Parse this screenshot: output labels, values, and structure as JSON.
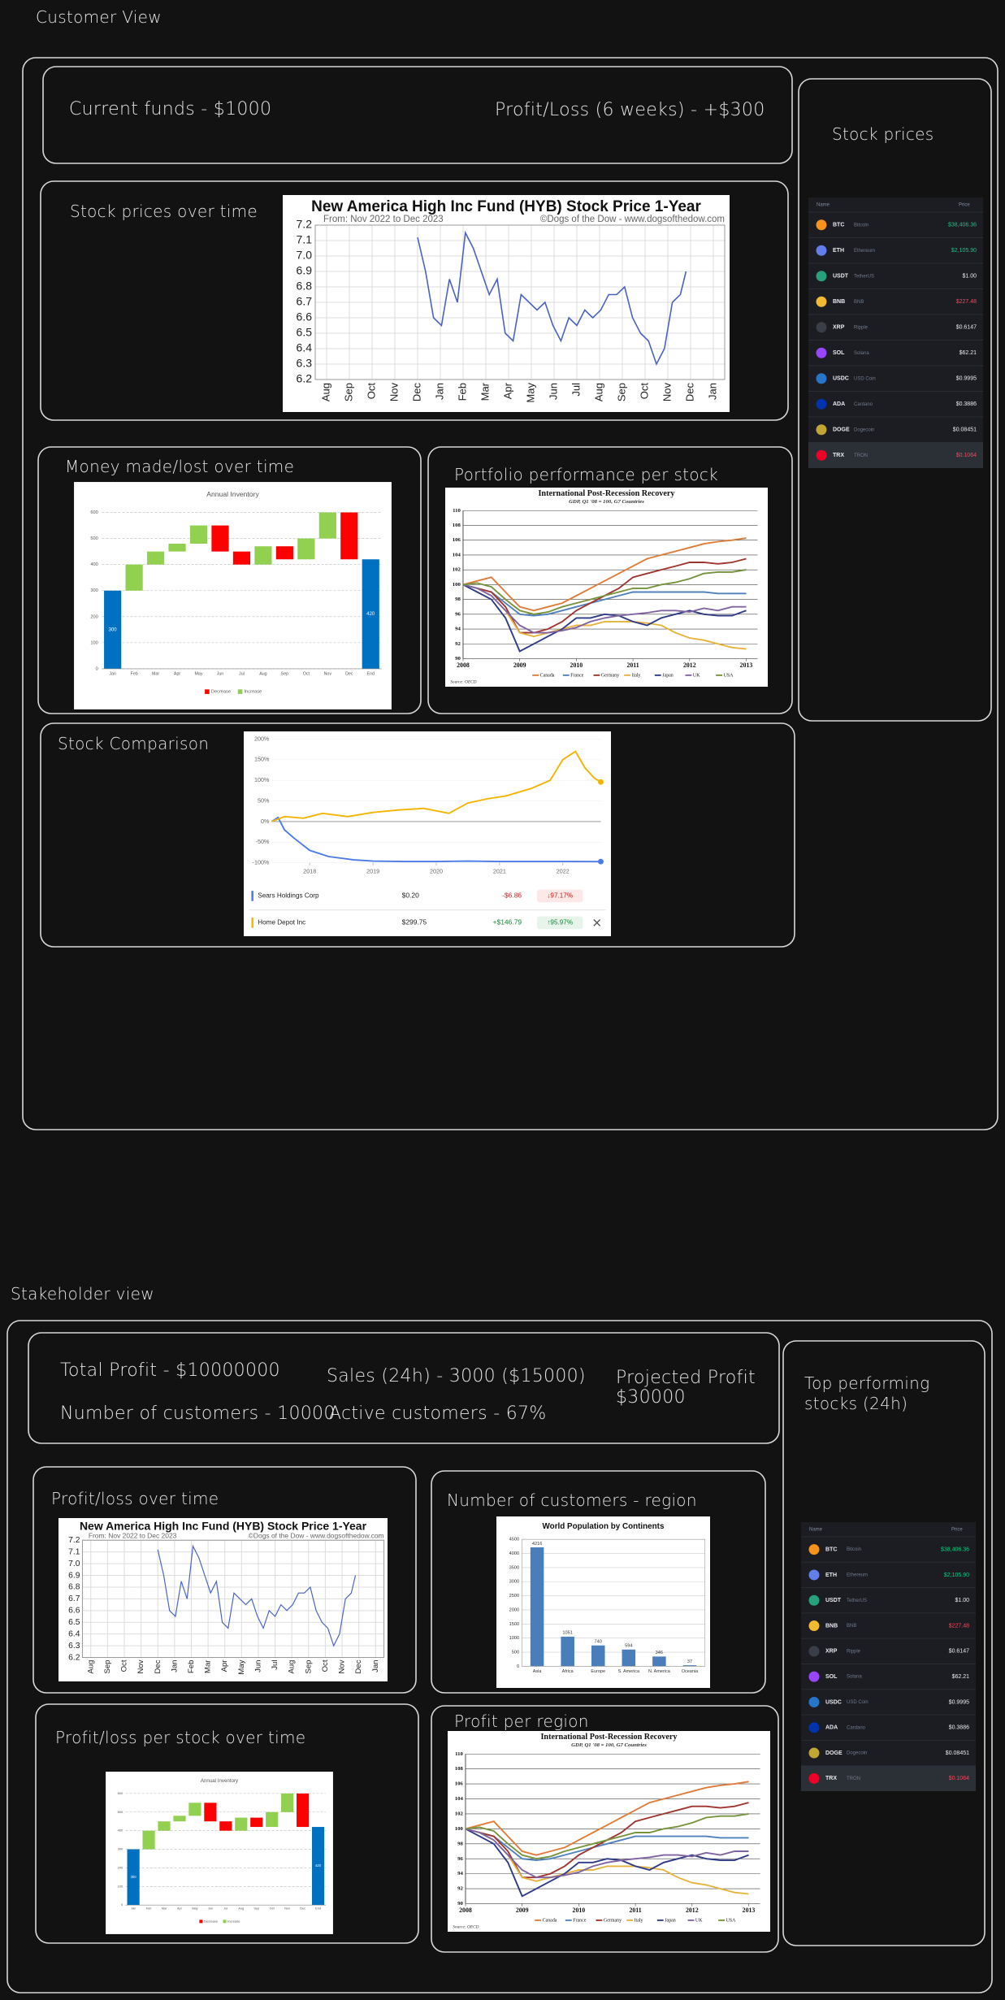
{
  "customer_view": {
    "title": "Customer View",
    "funds": "Current funds - $1000",
    "profit_loss": "Profit/Loss (6 weeks) - +$300",
    "stock_prices_title": "Stock prices",
    "panels": [
      "Stock prices over time",
      "Money made/lost over time",
      "Portfolio performance per stock",
      "Stock Comparison"
    ]
  },
  "stakeholder_view": {
    "title": "Stakeholder view",
    "metrics": [
      "Total Profit - $10000000",
      "Number of customers - 10000",
      "Sales (24h) - 3000 ($15000)",
      "Active customers - 67%",
      "Projected Profit",
      "$30000"
    ],
    "top_title": "Top performing stocks (24h)",
    "panels": [
      "Profit/loss over time",
      "Number of customers - region",
      "Profit/loss per stock over time",
      "Profit per region"
    ]
  },
  "crypto_table": {
    "headers": [
      "Name",
      "Price"
    ],
    "highlight_row": 9,
    "rows": [
      {
        "symbol": "BTC",
        "name": "Bitcoin",
        "price": "$38,406.36",
        "color": "#f7931a",
        "price_color": "#0ecb81"
      },
      {
        "symbol": "ETH",
        "name": "Ethereum",
        "price": "$2,105.90",
        "color": "#627eea",
        "price_color": "#0ecb81"
      },
      {
        "symbol": "USDT",
        "name": "TetherUS",
        "price": "$1.00",
        "color": "#26a17b",
        "price_color": "#eaecef"
      },
      {
        "symbol": "BNB",
        "name": "BNB",
        "price": "$227.48",
        "color": "#f3ba2f",
        "price_color": "#f6465d"
      },
      {
        "symbol": "XRP",
        "name": "Ripple",
        "price": "$0.6147",
        "color": "#3a3f47",
        "price_color": "#eaecef"
      },
      {
        "symbol": "SOL",
        "name": "Solana",
        "price": "$62.21",
        "color": "#9945ff",
        "price_color": "#eaecef"
      },
      {
        "symbol": "USDC",
        "name": "USD Coin",
        "price": "$0.9995",
        "color": "#2775ca",
        "price_color": "#eaecef"
      },
      {
        "symbol": "ADA",
        "name": "Cardano",
        "price": "$0.3886",
        "color": "#0033ad",
        "price_color": "#eaecef"
      },
      {
        "symbol": "DOGE",
        "name": "Dogecoin",
        "price": "$0.08451",
        "color": "#c2a633",
        "price_color": "#eaecef"
      },
      {
        "symbol": "TRX",
        "name": "TRON",
        "price": "$0.1064",
        "color": "#ef0027",
        "price_color": "#f6465d"
      }
    ]
  },
  "chart_data": [
    {
      "type": "line",
      "title": "New America High Inc Fund (HYB) Stock Price 1-Year",
      "subtitle": "From: Nov 2022 to Dec 2023",
      "credit": "©Dogs of the Dow - www.dogsofthedow.com",
      "color": "#4a63c0",
      "grid": true,
      "xlim": [
        0,
        18
      ],
      "xticks": [
        {
          "value": 0.5,
          "label": "Aug"
        },
        {
          "value": 1.5,
          "label": "Sep"
        },
        {
          "value": 2.5,
          "label": "Oct"
        },
        {
          "value": 3.5,
          "label": "Nov"
        },
        {
          "value": 4.5,
          "label": "Dec"
        },
        {
          "value": 5.5,
          "label": "Jan"
        },
        {
          "value": 6.5,
          "label": "Feb"
        },
        {
          "value": 7.5,
          "label": "Mar"
        },
        {
          "value": 8.5,
          "label": "Apr"
        },
        {
          "value": 9.5,
          "label": "May"
        },
        {
          "value": 10.5,
          "label": "Jun"
        },
        {
          "value": 11.5,
          "label": "Jul"
        },
        {
          "value": 12.5,
          "label": "Aug"
        },
        {
          "value": 13.5,
          "label": "Sep"
        },
        {
          "value": 14.5,
          "label": "Oct"
        },
        {
          "value": 15.5,
          "label": "Nov"
        },
        {
          "value": 16.5,
          "label": "Dec"
        },
        {
          "value": 17.5,
          "label": "Jan"
        }
      ],
      "ylim": [
        6.2,
        7.2
      ],
      "yticks": [
        6.2,
        6.3,
        6.4,
        6.5,
        6.6,
        6.7,
        6.8,
        6.9,
        {
          "value": 7,
          "label": "7.0"
        },
        7.1,
        7.2
      ],
      "x": [
        4.5,
        4.85,
        5.2,
        5.55,
        5.9,
        6.25,
        6.6,
        6.95,
        7.3,
        7.65,
        8.0,
        8.35,
        8.7,
        9.05,
        9.4,
        9.75,
        10.1,
        10.45,
        10.8,
        11.15,
        11.5,
        11.85,
        12.2,
        12.55,
        12.9,
        13.25,
        13.6,
        13.95,
        14.3,
        14.65,
        15.0,
        15.35,
        15.7,
        16.05,
        16.3
      ],
      "values": [
        7.12,
        6.9,
        6.6,
        6.55,
        6.85,
        6.7,
        7.15,
        7.05,
        6.9,
        6.75,
        6.85,
        6.5,
        6.45,
        6.75,
        6.7,
        6.65,
        6.7,
        6.55,
        6.45,
        6.6,
        6.55,
        6.65,
        6.6,
        6.65,
        6.75,
        6.75,
        6.8,
        6.6,
        6.5,
        6.45,
        6.3,
        6.4,
        6.7,
        6.75,
        6.9
      ]
    },
    {
      "type": "waterfall",
      "title": "Annual Inventory",
      "categories": [
        "Jan",
        "Feb",
        "Mar",
        "Apr",
        "May",
        "Jun",
        "Jul",
        "Aug",
        "Sep",
        "Oct",
        "Nov",
        "Dec",
        "End"
      ],
      "values": [
        300,
        100,
        50,
        30,
        70,
        -100,
        -50,
        70,
        -50,
        80,
        100,
        -180,
        420
      ],
      "is_total": [
        true,
        false,
        false,
        false,
        false,
        false,
        false,
        false,
        false,
        false,
        false,
        false,
        true
      ],
      "legend": [
        "Decrease",
        "Increase"
      ],
      "decrease_color": "#ff0000",
      "increase_color": "#92d050",
      "total_color": "#0070c0",
      "ylim": [
        0,
        600
      ],
      "yticks": [
        0,
        100,
        200,
        300,
        400,
        500,
        600
      ],
      "grid": true
    },
    {
      "type": "multiline",
      "title": "International Post-Recession Recovery",
      "subtitle": "GDP, Q1 '08 = 100, G7 Countries",
      "source": "Source: OECD",
      "xlim": [
        2008,
        2013.2
      ],
      "xticks": [
        2008,
        2009,
        2010,
        2011,
        2012,
        2013
      ],
      "ylim": [
        90,
        110
      ],
      "yticks": [
        90,
        92,
        94,
        96,
        98,
        100,
        102,
        104,
        106,
        108,
        110
      ],
      "grid": true,
      "x": [
        2008,
        2008.25,
        2008.5,
        2008.75,
        2009,
        2009.25,
        2009.5,
        2009.75,
        2010,
        2010.25,
        2010.5,
        2010.75,
        2011,
        2011.25,
        2011.5,
        2011.75,
        2012,
        2012.25,
        2012.5,
        2012.75,
        2013
      ],
      "series": [
        {
          "name": "Canada",
          "color": "#e07b39",
          "values": [
            100,
            100.5,
            101,
            99,
            97,
            96.5,
            97,
            97.5,
            98.5,
            99.5,
            100.5,
            101.5,
            102.5,
            103.5,
            104,
            104.5,
            105,
            105.5,
            105.8,
            106,
            106.3
          ]
        },
        {
          "name": "France",
          "color": "#4f81bd",
          "values": [
            100,
            99.5,
            99,
            97.5,
            96,
            95.8,
            96,
            96.5,
            97,
            97.5,
            98,
            98.5,
            99,
            99,
            99,
            99,
            99,
            99,
            98.8,
            98.8,
            98.8
          ]
        },
        {
          "name": "Germany",
          "color": "#a0352f",
          "values": [
            100,
            99.5,
            99,
            97,
            93.5,
            93.5,
            94,
            95,
            96.5,
            97.5,
            98.5,
            99.5,
            101,
            101.5,
            102,
            102.5,
            103,
            103,
            102.8,
            103,
            103.5
          ]
        },
        {
          "name": "Italy",
          "color": "#e6b33c",
          "values": [
            100,
            99.5,
            98.5,
            96.5,
            93.5,
            93,
            93.5,
            94,
            94.5,
            94.5,
            95,
            95,
            95,
            94.8,
            94.5,
            93.5,
            92.8,
            92.5,
            92,
            91.5,
            91.3
          ]
        },
        {
          "name": "Japan",
          "color": "#2e3a87",
          "values": [
            100,
            99,
            98,
            95.5,
            91,
            92,
            93,
            94,
            95.5,
            95.5,
            96,
            95.8,
            95,
            94.5,
            95.5,
            96,
            96.5,
            96,
            95.8,
            95.8,
            96.5
          ]
        },
        {
          "name": "UK",
          "color": "#8064a2",
          "values": [
            100,
            99.5,
            98.5,
            96.5,
            94.5,
            93.5,
            93.5,
            93.8,
            94.2,
            95,
            95.5,
            95.8,
            96,
            96.2,
            96.5,
            96.5,
            96.3,
            96.8,
            96.5,
            97,
            97
          ]
        },
        {
          "name": "USA",
          "color": "#77933c",
          "values": [
            100,
            100.2,
            99.7,
            98,
            96.5,
            96,
            96.3,
            97,
            97.5,
            98,
            98.5,
            99,
            99.5,
            99.5,
            100,
            100.3,
            100.8,
            101.5,
            101.7,
            101.7,
            102
          ]
        }
      ]
    },
    {
      "type": "comparison",
      "xlim": [
        2017.4,
        2022.6
      ],
      "xticks": [
        2018,
        2019,
        2020,
        2021,
        2022
      ],
      "ylim": [
        -100,
        200
      ],
      "yticks": [
        {
          "value": -100,
          "label": "-100%"
        },
        {
          "value": -50,
          "label": "-50%"
        },
        {
          "value": 0,
          "label": "0%"
        },
        {
          "value": 50,
          "label": "50%"
        },
        {
          "value": 100,
          "label": "100%"
        },
        {
          "value": 150,
          "label": "150%"
        },
        {
          "value": 200,
          "label": "200%"
        }
      ],
      "series": [
        {
          "name": "Sears Holdings Corp",
          "color": "#4a7be8",
          "price": "$0.20",
          "change": "-$6.86",
          "change_pct": "↓97.17%",
          "x": [
            2017.4,
            2017.5,
            2017.6,
            2017.75,
            2018,
            2018.3,
            2018.7,
            2019,
            2019.5,
            2020,
            2020.5,
            2021,
            2021.5,
            2022,
            2022.6
          ],
          "values": [
            0,
            10,
            -20,
            -40,
            -70,
            -85,
            -93,
            -96,
            -97,
            -97,
            -96,
            -97,
            -97,
            -97,
            -97.17
          ]
        },
        {
          "name": "Home Depot Inc",
          "color": "#f4b400",
          "price": "$299.75",
          "change": "+$146.79",
          "change_pct": "↑95.97%",
          "x": [
            2017.4,
            2017.6,
            2017.9,
            2018.2,
            2018.6,
            2019,
            2019.4,
            2019.8,
            2020.2,
            2020.5,
            2020.8,
            2021.1,
            2021.5,
            2021.8,
            2022,
            2022.2,
            2022.35,
            2022.5,
            2022.6
          ],
          "values": [
            0,
            12,
            8,
            20,
            12,
            22,
            28,
            32,
            20,
            45,
            55,
            62,
            80,
            100,
            150,
            170,
            130,
            105,
            95.97
          ]
        }
      ]
    },
    {
      "type": "bar",
      "title": "World Population by Continents",
      "categories": [
        "Asia",
        "Africa",
        "Europe",
        "S. America",
        "N. America",
        "Oceania"
      ],
      "values": [
        4216,
        1051,
        740,
        594,
        346,
        37
      ],
      "color": "#4a7ebb",
      "ylim": [
        0,
        4500
      ],
      "yticks": [
        0,
        500,
        1000,
        1500,
        2000,
        2500,
        3000,
        3500,
        4000,
        4500
      ],
      "grid": true
    }
  ]
}
